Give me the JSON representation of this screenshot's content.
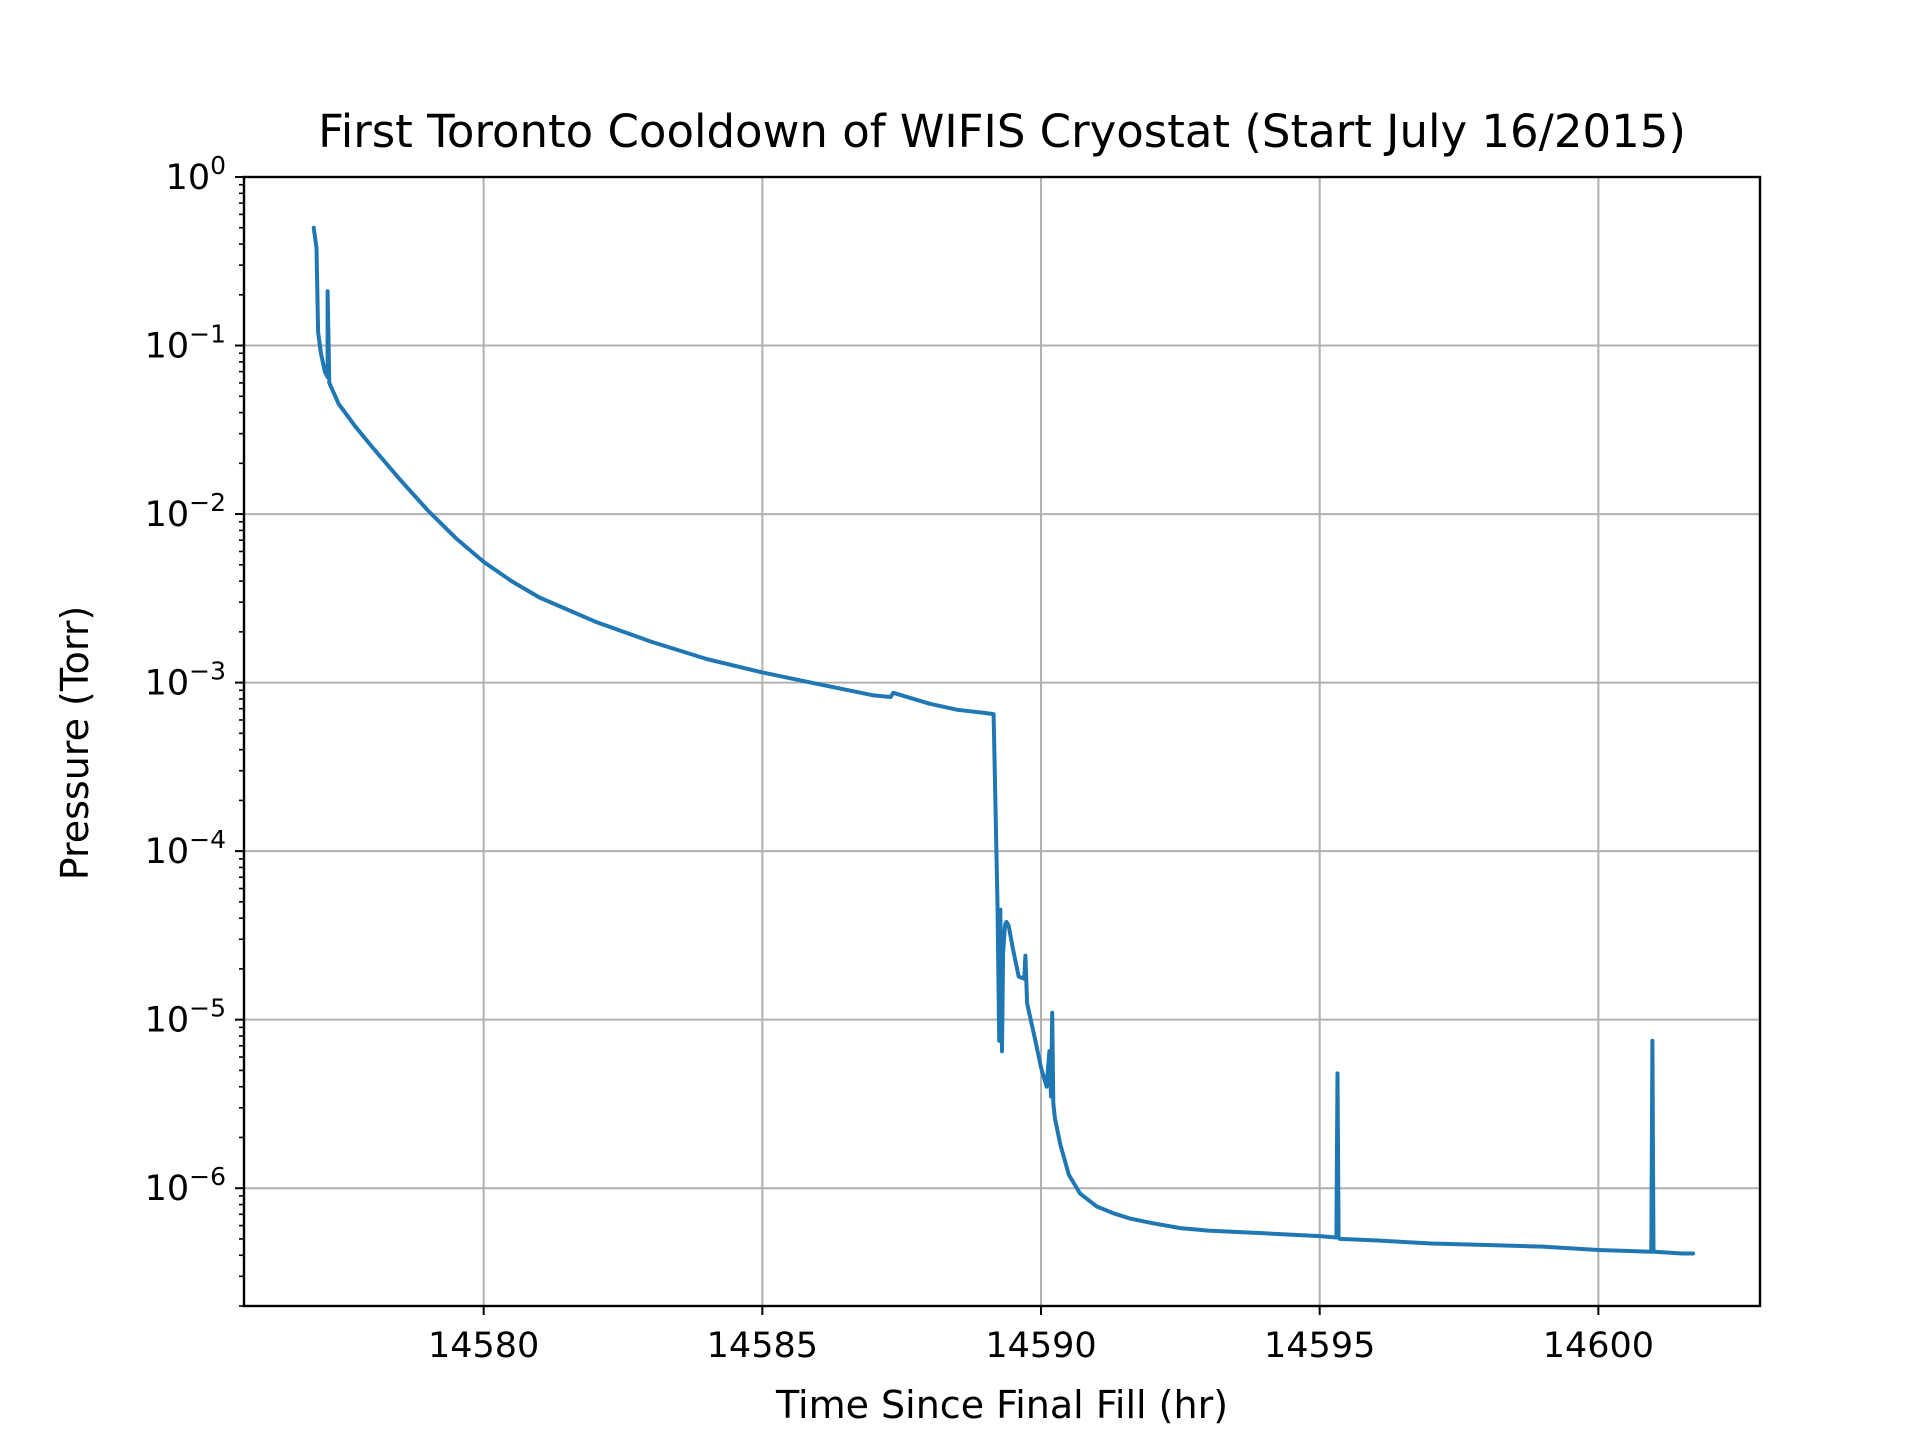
{
  "chart_data": {
    "type": "line",
    "title": "First Toronto Cooldown of WIFIS Cryostat (Start July 16/2015)",
    "xlabel": "Time Since Final Fill (hr)",
    "ylabel": "Pressure (Torr)",
    "xlim": [
      14575.7,
      14602.9
    ],
    "ylim": [
      2e-07,
      1.0
    ],
    "yscale": "log",
    "grid": true,
    "line_color": "#1f77b4",
    "x_ticks": [
      {
        "value": 14580,
        "label": "14580"
      },
      {
        "value": 14585,
        "label": "14585"
      },
      {
        "value": 14590,
        "label": "14590"
      },
      {
        "value": 14595,
        "label": "14595"
      },
      {
        "value": 14600,
        "label": "14600"
      }
    ],
    "y_ticks": [
      {
        "value": 1,
        "base": "10",
        "exp": "0"
      },
      {
        "value": 0.1,
        "base": "10",
        "exp": "−1"
      },
      {
        "value": 0.01,
        "base": "10",
        "exp": "−2"
      },
      {
        "value": 0.001,
        "base": "10",
        "exp": "−3"
      },
      {
        "value": 0.0001,
        "base": "10",
        "exp": "−4"
      },
      {
        "value": 1e-05,
        "base": "10",
        "exp": "−5"
      },
      {
        "value": 1e-06,
        "base": "10",
        "exp": "−6"
      }
    ],
    "series": [
      {
        "x": [
          14576.95,
          14577.0,
          14577.03,
          14577.08,
          14577.15,
          14577.2,
          14577.2,
          14577.23,
          14577.4,
          14577.7,
          14578.0,
          14578.5,
          14579.0,
          14579.5,
          14580.0,
          14580.5,
          14581.0,
          14582.0,
          14583.0,
          14584.0,
          14585.0,
          14586.0,
          14587.0,
          14587.3,
          14587.35,
          14588.0,
          14588.5,
          14589.0,
          14589.15,
          14589.2,
          14589.22,
          14589.25,
          14589.27,
          14589.3,
          14589.32,
          14589.35,
          14589.36,
          14589.38,
          14589.42,
          14589.5,
          14589.6,
          14589.7,
          14589.72,
          14589.75,
          14589.8,
          14589.9,
          14590.0,
          14590.1,
          14590.15,
          14590.18,
          14590.2,
          14590.22,
          14590.25,
          14590.35,
          14590.5,
          14590.7,
          14591.0,
          14591.3,
          14591.6,
          14592.0,
          14592.5,
          14593.0,
          14594.0,
          14595.0,
          14595.3,
          14595.32,
          14595.34,
          14595.36,
          14596.0,
          14597.0,
          14598.0,
          14599.0,
          14600.0,
          14600.95,
          14600.97,
          14600.99,
          14601.01,
          14601.5,
          14601.7
        ],
        "y": [
          0.5,
          0.38,
          0.12,
          0.09,
          0.07,
          0.065,
          0.21,
          0.06,
          0.045,
          0.033,
          0.025,
          0.016,
          0.0105,
          0.0072,
          0.0052,
          0.004,
          0.0032,
          0.0023,
          0.00175,
          0.00138,
          0.00115,
          0.00098,
          0.00084,
          0.00082,
          0.00087,
          0.00075,
          0.00069,
          0.00066,
          0.00065,
          0.0001,
          4.8e-05,
          7.5e-06,
          4.5e-05,
          6.5e-06,
          2.5e-05,
          3.5e-05,
          3.7e-05,
          3.8e-05,
          3.6e-05,
          2.6e-05,
          1.8e-05,
          1.75e-05,
          2.4e-05,
          1.25e-05,
          1.05e-05,
          7.5e-06,
          5.2e-06,
          4e-06,
          6.5e-06,
          3.5e-06,
          1.1e-05,
          3.2e-06,
          2.6e-06,
          1.8e-06,
          1.2e-06,
          9.3e-07,
          7.8e-07,
          7.1e-07,
          6.6e-07,
          6.2e-07,
          5.8e-07,
          5.6e-07,
          5.4e-07,
          5.2e-07,
          5.1e-07,
          4.8e-06,
          5.1e-07,
          5e-07,
          4.9e-07,
          4.7e-07,
          4.6e-07,
          4.5e-07,
          4.3e-07,
          4.2e-07,
          7.5e-06,
          4.2e-07,
          4.2e-07,
          4.1e-07,
          4.1e-07
        ]
      }
    ]
  }
}
